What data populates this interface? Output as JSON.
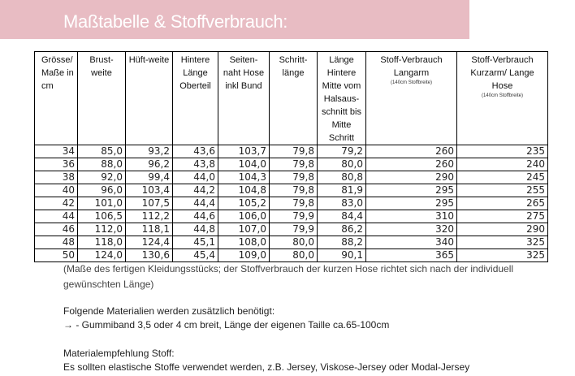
{
  "banner": {
    "title": "Maßtabelle & Stoffverbrauch:"
  },
  "table": {
    "headers": [
      {
        "label": "Grösse/ Maße in cm",
        "sub": ""
      },
      {
        "label": "Brust-weite",
        "sub": ""
      },
      {
        "label": "Hüft-weite",
        "sub": ""
      },
      {
        "label": "Hintere Länge Oberteil",
        "sub": ""
      },
      {
        "label": "Seiten-naht Hose inkl Bund",
        "sub": ""
      },
      {
        "label": "Schritt-länge",
        "sub": ""
      },
      {
        "label": "Länge Hintere Mitte vom Halsaus-schnitt bis Mitte Schritt",
        "sub": ""
      },
      {
        "label": "Stoff-Verbrauch Langarm",
        "sub": "(140cm Stoffbreite)"
      },
      {
        "label": "Stoff-Verbrauch Kurzarm/ Lange Hose",
        "sub": "(140cm Stoffbreite)"
      }
    ],
    "rows": [
      [
        "34",
        "85,0",
        "93,2",
        "43,6",
        "103,7",
        "79,8",
        "79,2",
        "260",
        "235"
      ],
      [
        "36",
        "88,0",
        "96,2",
        "43,8",
        "104,0",
        "79,8",
        "80,0",
        "260",
        "240"
      ],
      [
        "38",
        "92,0",
        "99,4",
        "44,0",
        "104,3",
        "79,8",
        "80,8",
        "290",
        "245"
      ],
      [
        "40",
        "96,0",
        "103,4",
        "44,2",
        "104,8",
        "79,8",
        "81,9",
        "295",
        "255"
      ],
      [
        "42",
        "101,0",
        "107,5",
        "44,4",
        "105,2",
        "79,8",
        "83,0",
        "295",
        "265"
      ],
      [
        "44",
        "106,5",
        "112,2",
        "44,6",
        "106,0",
        "79,9",
        "84,4",
        "310",
        "275"
      ],
      [
        "46",
        "112,0",
        "118,1",
        "44,8",
        "107,0",
        "79,9",
        "86,2",
        "320",
        "290"
      ],
      [
        "48",
        "118,0",
        "124,4",
        "45,1",
        "108,0",
        "80,0",
        "88,2",
        "340",
        "325"
      ],
      [
        "50",
        "124,0",
        "130,6",
        "45,4",
        "109,0",
        "80,0",
        "90,1",
        "365",
        "325"
      ]
    ]
  },
  "note": "(Maße des fertigen Kleidungsstücks; der Stoffverbrauch der kurzen Hose richtet sich nach der individuell gewünschten Länge)",
  "materials": {
    "heading": "Folgende Materialien werden zusätzlich benötigt:",
    "item": "→ - Gummiband 3,5 oder 4 cm breit, Länge der eigenen Taille ca.65-100cm"
  },
  "recommendation": {
    "heading": "Materialempfehlung Stoff:",
    "text": "Es sollten elastische Stoffe verwendet werden, z.B. Jersey, Viskose-Jersey oder Modal-Jersey"
  }
}
